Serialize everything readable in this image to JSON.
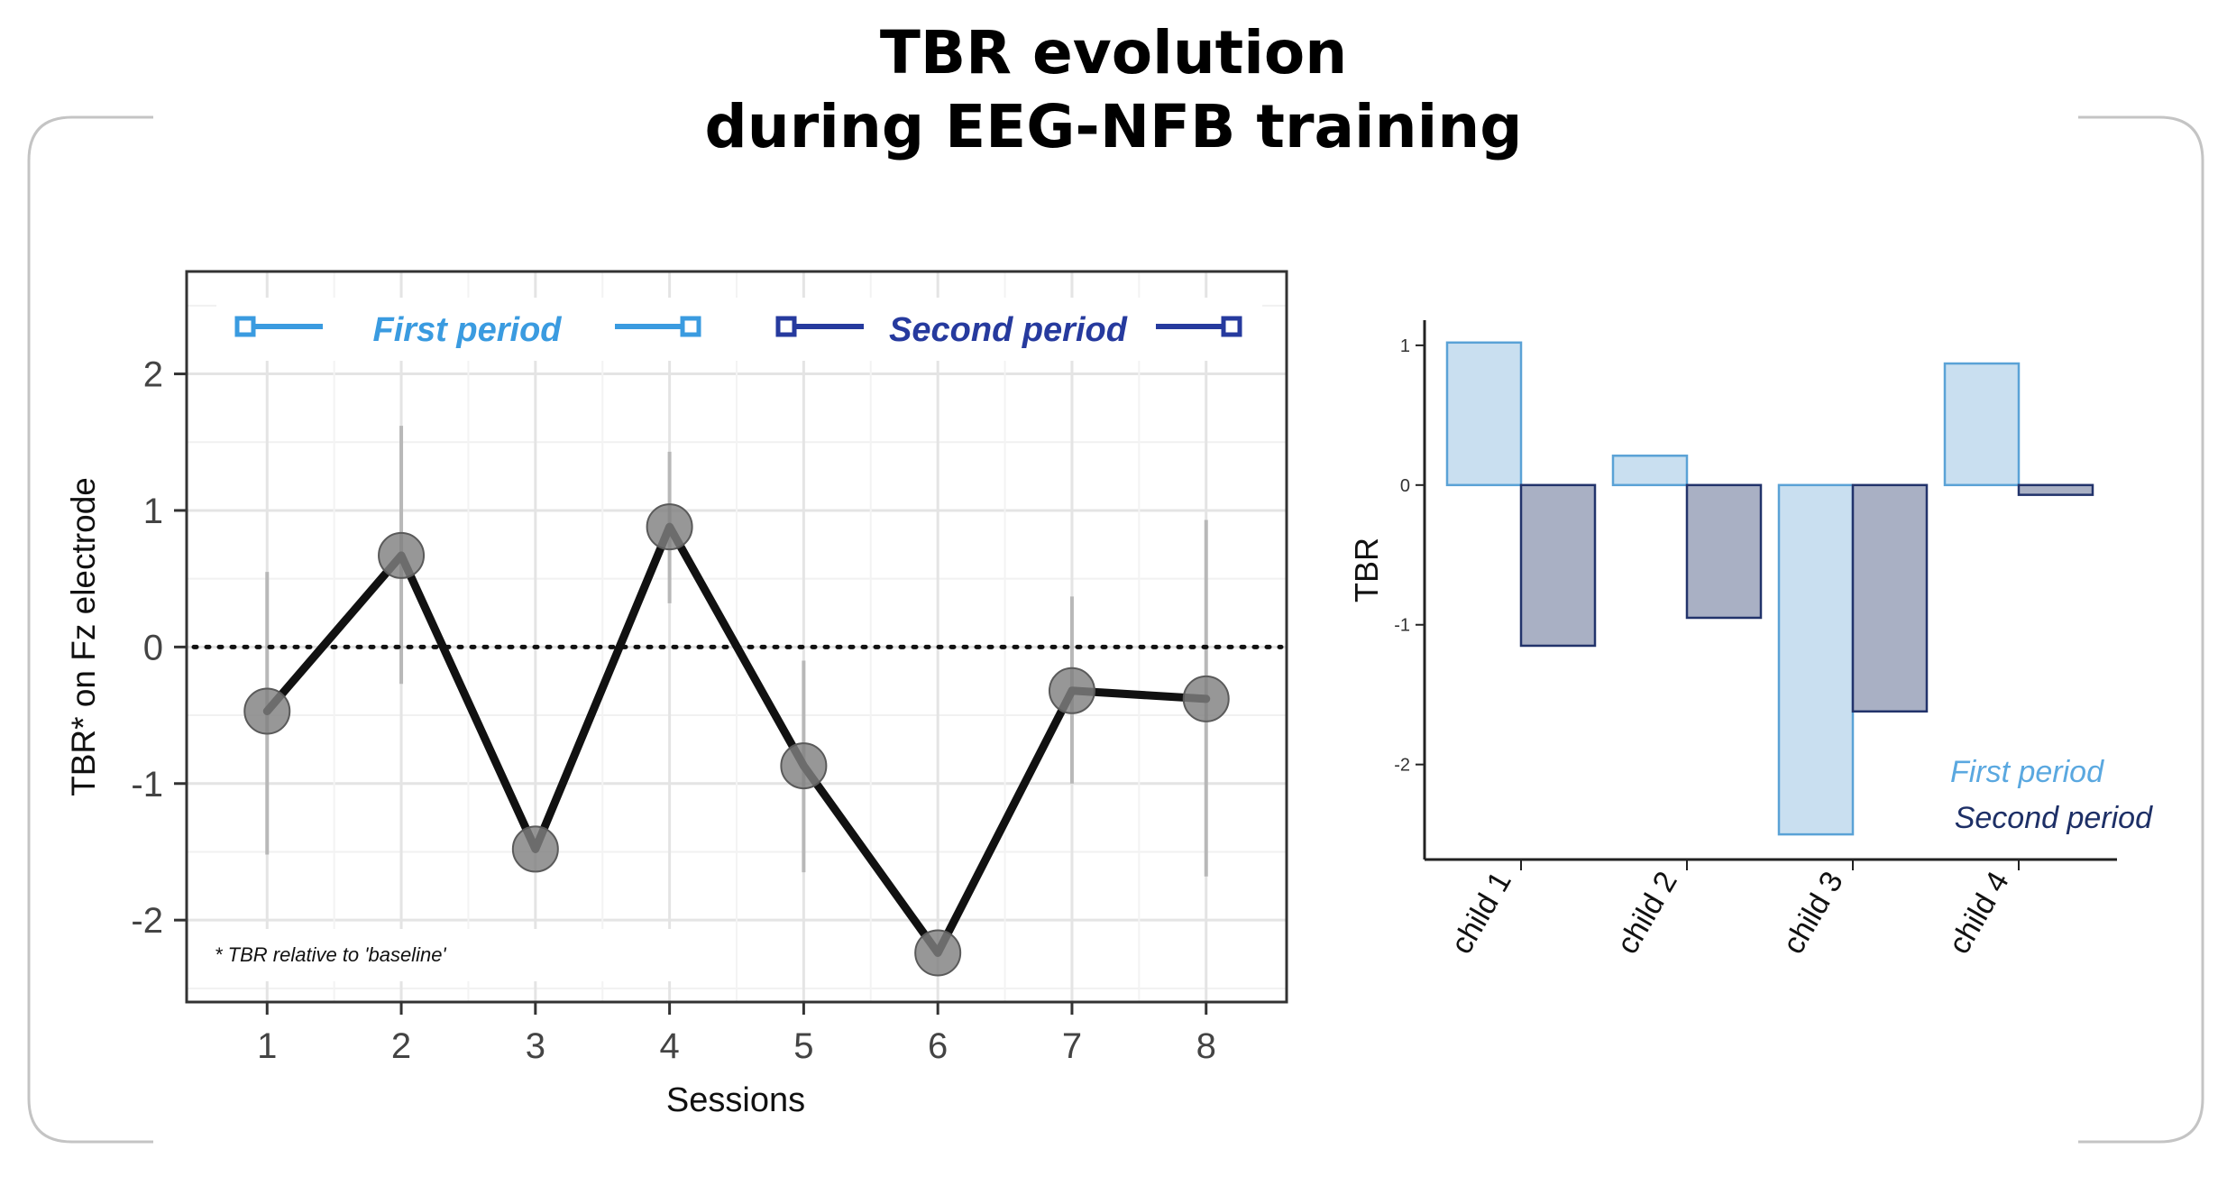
{
  "title": {
    "line1": "TBR evolution",
    "line2": "during EEG-NFB training"
  },
  "colors": {
    "first_period": "#3a9be0",
    "second_period": "#263a9e",
    "line": "#111111",
    "marker": "#808080",
    "bar_first_fill": "#c9dff0",
    "bar_first_stroke": "#5aa2d6",
    "bar_second_fill": "#a9b0c4",
    "bar_second_stroke": "#22336b",
    "first_period_text_right": "#5aa8e0",
    "second_period_text_right": "#1d2f66"
  },
  "chart_data": [
    {
      "type": "line",
      "ylabel": "TBR* on Fz electrode",
      "xlabel": "Sessions",
      "x": [
        1,
        2,
        3,
        4,
        5,
        6,
        7,
        8
      ],
      "y": [
        -0.47,
        0.67,
        -1.48,
        0.88,
        -0.87,
        -2.24,
        -0.32,
        -0.38
      ],
      "error_low": [
        -1.52,
        -0.27,
        -1.48,
        0.32,
        -1.65,
        -2.24,
        -1.0,
        -1.68
      ],
      "error_high": [
        0.55,
        1.62,
        -1.48,
        1.43,
        -0.1,
        -2.24,
        0.37,
        0.93
      ],
      "xlim": [
        0.4,
        8.6
      ],
      "ylim": [
        -2.6,
        2.75
      ],
      "yticks": [
        -2,
        -1,
        0,
        1,
        2
      ],
      "ytick_labels": [
        "-2",
        "-1",
        "0",
        "1",
        "2"
      ],
      "xtick_labels": [
        "1",
        "2",
        "3",
        "4",
        "5",
        "6",
        "7",
        "8"
      ],
      "reference_line": 0,
      "periods": [
        {
          "name": "First period",
          "from_session": 1,
          "to_session": 4
        },
        {
          "name": "Second period",
          "from_session": 5,
          "to_session": 8
        }
      ],
      "note": "* TBR relative to 'baseline'",
      "grid": true
    },
    {
      "type": "bar",
      "ylabel": "TBR",
      "categories": [
        "child 1",
        "child 2",
        "child 3",
        "child 4"
      ],
      "series": [
        {
          "name": "First period",
          "values": [
            1.02,
            0.21,
            -2.5,
            0.87
          ]
        },
        {
          "name": "Second period",
          "values": [
            -1.15,
            -0.95,
            -1.62,
            -0.07
          ]
        }
      ],
      "ylim": [
        -2.68,
        1.18
      ],
      "yticks": [
        1,
        0,
        -1,
        -2
      ],
      "ytick_labels": [
        "1",
        "0",
        "-1",
        "-2"
      ],
      "legend": "bottom-right",
      "grid": false
    }
  ]
}
